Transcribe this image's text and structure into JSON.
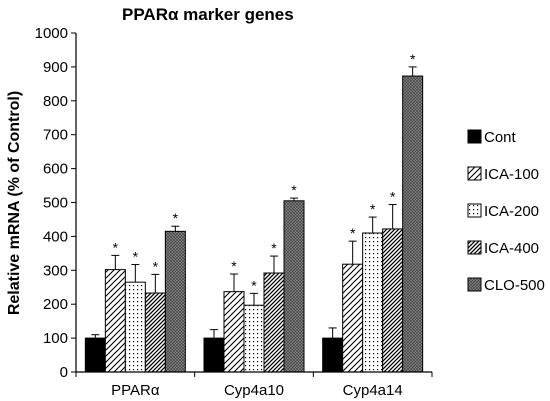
{
  "chart_data": {
    "type": "bar",
    "title": "PPARα marker genes",
    "xlabel": "",
    "ylabel": "Relative mRNA (% of Control)",
    "ylim": [
      0,
      1000
    ],
    "yticks": [
      0,
      100,
      200,
      300,
      400,
      500,
      600,
      700,
      800,
      900,
      1000
    ],
    "grid": false,
    "legend_position": "right",
    "categories": [
      "PPARα",
      "Cyp4a10",
      "Cyp4a14"
    ],
    "significance_marker": "*",
    "series": [
      {
        "name": "Cont",
        "pattern": "solid",
        "values": [
          100,
          100,
          100
        ],
        "errors": [
          10,
          25,
          30
        ],
        "significant": [
          false,
          false,
          false
        ]
      },
      {
        "name": "ICA-100",
        "pattern": "diagonal",
        "values": [
          302,
          237,
          318
        ],
        "errors": [
          42,
          52,
          68
        ],
        "significant": [
          true,
          true,
          true
        ]
      },
      {
        "name": "ICA-200",
        "pattern": "dots",
        "values": [
          265,
          197,
          410
        ],
        "errors": [
          52,
          35,
          47
        ],
        "significant": [
          true,
          true,
          true
        ]
      },
      {
        "name": "ICA-400",
        "pattern": "dense-diagonal",
        "values": [
          233,
          292,
          422
        ],
        "errors": [
          55,
          50,
          72
        ],
        "significant": [
          true,
          true,
          true
        ]
      },
      {
        "name": "CLO-500",
        "pattern": "crosshatch",
        "values": [
          415,
          505,
          873
        ],
        "errors": [
          15,
          8,
          27
        ],
        "significant": [
          true,
          true,
          true
        ]
      }
    ]
  }
}
